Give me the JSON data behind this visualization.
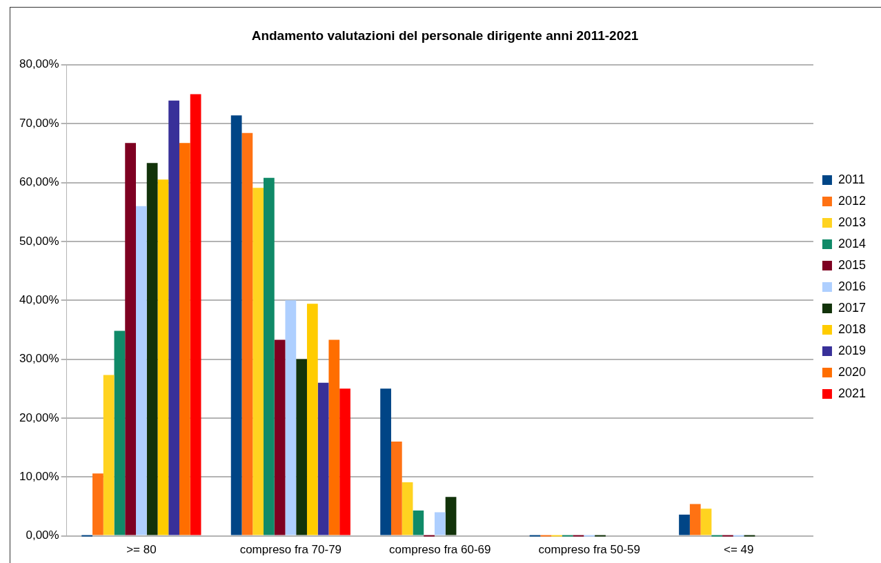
{
  "chart_data": {
    "type": "bar",
    "title": "Andamento valutazioni del personale dirigente anni 2011-2021",
    "categories": [
      ">= 80",
      "compreso fra 70-79",
      "compreso fra 60-69",
      "compreso fra 50-59",
      "<= 49"
    ],
    "series": [
      {
        "name": "2011",
        "color": "#004586",
        "values": [
          0,
          71.4,
          25.0,
          0,
          3.6
        ]
      },
      {
        "name": "2012",
        "color": "#ff7213",
        "values": [
          10.6,
          68.4,
          16.0,
          0,
          5.4
        ]
      },
      {
        "name": "2013",
        "color": "#ffd320",
        "values": [
          27.3,
          59.1,
          9.1,
          0,
          4.6
        ]
      },
      {
        "name": "2014",
        "color": "#108a68",
        "values": [
          34.8,
          60.8,
          4.3,
          0,
          0
        ]
      },
      {
        "name": "2015",
        "color": "#7e0021",
        "values": [
          66.7,
          33.3,
          0,
          0,
          0
        ]
      },
      {
        "name": "2016",
        "color": "#aecfff",
        "values": [
          56.0,
          40.0,
          4.0,
          0,
          0
        ]
      },
      {
        "name": "2017",
        "color": "#12330a",
        "values": [
          63.3,
          30.0,
          6.6,
          0,
          0
        ]
      },
      {
        "name": "2018",
        "color": "#ffcc00",
        "values": [
          60.5,
          39.4,
          null,
          null,
          null
        ]
      },
      {
        "name": "2019",
        "color": "#383099",
        "values": [
          73.9,
          26.0,
          null,
          null,
          null
        ]
      },
      {
        "name": "2020",
        "color": "#ff6e00",
        "values": [
          66.7,
          33.3,
          null,
          null,
          null
        ]
      },
      {
        "name": "2021",
        "color": "#ff0000",
        "values": [
          75.0,
          25.0,
          null,
          null,
          null
        ]
      }
    ],
    "ylim": [
      0,
      80
    ],
    "yticks": [
      {
        "value": 0,
        "label": "0,00%"
      },
      {
        "value": 10,
        "label": "10,00%"
      },
      {
        "value": 20,
        "label": "20,00%"
      },
      {
        "value": 30,
        "label": "30,00%"
      },
      {
        "value": 40,
        "label": "40,00%"
      },
      {
        "value": 50,
        "label": "50,00%"
      },
      {
        "value": 60,
        "label": "60,00%"
      },
      {
        "value": 70,
        "label": "70,00%"
      },
      {
        "value": 80,
        "label": "80,00%"
      }
    ],
    "grid": "y",
    "legend": "right"
  }
}
